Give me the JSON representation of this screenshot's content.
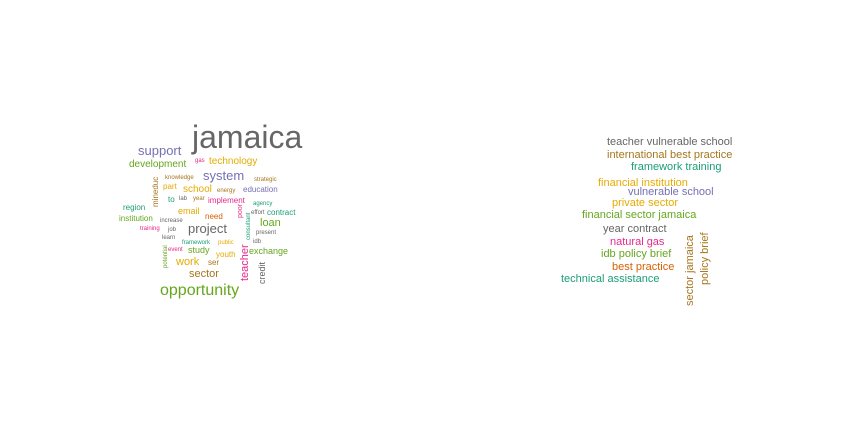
{
  "colors": {
    "background": "#ffffff",
    "palette": [
      "#666666",
      "#7570b3",
      "#66a61e",
      "#e6ab02",
      "#a6761d",
      "#1b9e77",
      "#d95f02",
      "#e7298a"
    ]
  },
  "clouds": [
    {
      "name": "unigram-cloud",
      "words": [
        {
          "text": "jamaica",
          "color": "#666666"
        },
        {
          "text": "support",
          "color": "#7570b3"
        },
        {
          "text": "gas",
          "color": "#e7298a"
        },
        {
          "text": "technology",
          "color": "#e6ab02"
        },
        {
          "text": "development",
          "color": "#66a61e"
        },
        {
          "text": "system",
          "color": "#7570b3"
        },
        {
          "text": "knowledge",
          "color": "#a6761d"
        },
        {
          "text": "strategic",
          "color": "#a6761d"
        },
        {
          "text": "part",
          "color": "#e6ab02"
        },
        {
          "text": "school",
          "color": "#e6ab02"
        },
        {
          "text": "energy",
          "color": "#a6761d"
        },
        {
          "text": "education",
          "color": "#7570b3"
        },
        {
          "text": "mineduc",
          "color": "#a6761d"
        },
        {
          "text": "to",
          "color": "#1b9e77"
        },
        {
          "text": "lab",
          "color": "#666666"
        },
        {
          "text": "year",
          "color": "#a6761d"
        },
        {
          "text": "implement",
          "color": "#e7298a"
        },
        {
          "text": "agency",
          "color": "#1b9e77"
        },
        {
          "text": "region",
          "color": "#1b9e77"
        },
        {
          "text": "email",
          "color": "#e6ab02"
        },
        {
          "text": "effort",
          "color": "#666666"
        },
        {
          "text": "contract",
          "color": "#1b9e77"
        },
        {
          "text": "institution",
          "color": "#66a61e"
        },
        {
          "text": "increase",
          "color": "#666666"
        },
        {
          "text": "need",
          "color": "#d95f02"
        },
        {
          "text": "poor",
          "color": "#e7298a"
        },
        {
          "text": "loan",
          "color": "#66a61e"
        },
        {
          "text": "training",
          "color": "#e7298a"
        },
        {
          "text": "job",
          "color": "#666666"
        },
        {
          "text": "project",
          "color": "#666666"
        },
        {
          "text": "present",
          "color": "#666666"
        },
        {
          "text": "learn",
          "color": "#666666"
        },
        {
          "text": "consultant",
          "color": "#1b9e77"
        },
        {
          "text": "framework",
          "color": "#1b9e77"
        },
        {
          "text": "public",
          "color": "#e6ab02"
        },
        {
          "text": "idb",
          "color": "#666666"
        },
        {
          "text": "potential",
          "color": "#66a61e"
        },
        {
          "text": "event",
          "color": "#e7298a"
        },
        {
          "text": "study",
          "color": "#66a61e"
        },
        {
          "text": "youth",
          "color": "#e6ab02"
        },
        {
          "text": "exchange",
          "color": "#66a61e"
        },
        {
          "text": "work",
          "color": "#e6ab02"
        },
        {
          "text": "ser",
          "color": "#a6761d"
        },
        {
          "text": "teacher",
          "color": "#e7298a"
        },
        {
          "text": "credit",
          "color": "#666666"
        },
        {
          "text": "sector",
          "color": "#a6761d"
        },
        {
          "text": "opportunity",
          "color": "#66a61e"
        }
      ]
    },
    {
      "name": "bigram-cloud",
      "words": [
        {
          "text": "teacher vulnerable school",
          "color": "#666666"
        },
        {
          "text": "international best practice",
          "color": "#a6761d"
        },
        {
          "text": "framework training",
          "color": "#1b9e77"
        },
        {
          "text": "financial institution",
          "color": "#e6ab02"
        },
        {
          "text": "vulnerable school",
          "color": "#7570b3"
        },
        {
          "text": "private sector",
          "color": "#e6ab02"
        },
        {
          "text": "financial sector jamaica",
          "color": "#66a61e"
        },
        {
          "text": "year contract",
          "color": "#666666"
        },
        {
          "text": "natural gas",
          "color": "#e7298a"
        },
        {
          "text": "idb policy brief",
          "color": "#66a61e"
        },
        {
          "text": "best practice",
          "color": "#d95f02"
        },
        {
          "text": "technical assistance",
          "color": "#1b9e77"
        },
        {
          "text": "sector jamaica",
          "color": "#a6761d"
        },
        {
          "text": "policy brief",
          "color": "#a6761d"
        }
      ]
    }
  ]
}
